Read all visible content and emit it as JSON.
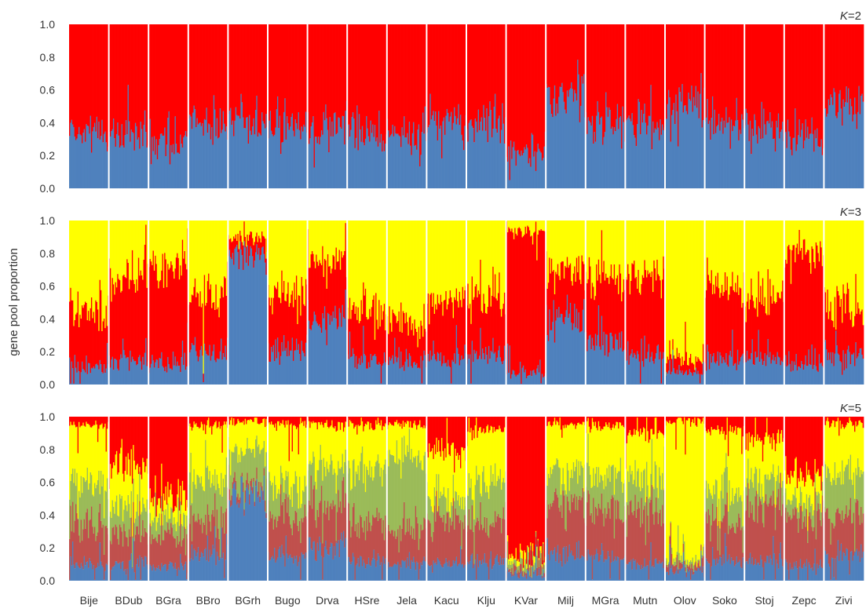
{
  "ylabel": "gene pool proportion",
  "colors": {
    "blue": "#4f81bd",
    "red": "#ff0000",
    "yellow": "#ffff00",
    "olive": "#9bbb59",
    "brown": "#c0504d",
    "separator": "#ffffff"
  },
  "chart_data": {
    "type": "bar",
    "stacked": true,
    "ylim": [
      0,
      1
    ],
    "yticks": [
      "0.0",
      "0.2",
      "0.4",
      "0.6",
      "0.8",
      "1.0"
    ],
    "populations": [
      "Bije",
      "BDub",
      "BGra",
      "BBro",
      "BGrh",
      "Bugo",
      "Drva",
      "HSre",
      "Jela",
      "Kacu",
      "Klju",
      "KVar",
      "Milj",
      "MGra",
      "Mutn",
      "Olov",
      "Soko",
      "Stoj",
      "Zepc",
      "Zivi"
    ],
    "panels": [
      {
        "k_label": "K=2",
        "k_italic": "K",
        "k_value": "=2",
        "component_colors": [
          "blue",
          "red"
        ],
        "population_means": [
          [
            0.33,
            0.67
          ],
          [
            0.31,
            0.69
          ],
          [
            0.27,
            0.73
          ],
          [
            0.38,
            0.62
          ],
          [
            0.4,
            0.6
          ],
          [
            0.39,
            0.61
          ],
          [
            0.37,
            0.63
          ],
          [
            0.33,
            0.67
          ],
          [
            0.31,
            0.69
          ],
          [
            0.4,
            0.6
          ],
          [
            0.4,
            0.6
          ],
          [
            0.21,
            0.79
          ],
          [
            0.57,
            0.43
          ],
          [
            0.39,
            0.61
          ],
          [
            0.36,
            0.64
          ],
          [
            0.5,
            0.5
          ],
          [
            0.4,
            0.6
          ],
          [
            0.36,
            0.64
          ],
          [
            0.3,
            0.7
          ],
          [
            0.5,
            0.5
          ]
        ]
      },
      {
        "k_label": "K=3",
        "k_italic": "K",
        "k_value": "=3",
        "component_colors": [
          "blue",
          "red",
          "yellow"
        ],
        "population_means": [
          [
            0.1,
            0.35,
            0.55
          ],
          [
            0.15,
            0.5,
            0.35
          ],
          [
            0.12,
            0.6,
            0.28
          ],
          [
            0.2,
            0.35,
            0.45
          ],
          [
            0.8,
            0.1,
            0.1
          ],
          [
            0.2,
            0.35,
            0.45
          ],
          [
            0.4,
            0.35,
            0.25
          ],
          [
            0.15,
            0.3,
            0.55
          ],
          [
            0.15,
            0.22,
            0.63
          ],
          [
            0.15,
            0.35,
            0.5
          ],
          [
            0.18,
            0.35,
            0.47
          ],
          [
            0.07,
            0.87,
            0.06
          ],
          [
            0.4,
            0.3,
            0.3
          ],
          [
            0.25,
            0.4,
            0.35
          ],
          [
            0.18,
            0.5,
            0.32
          ],
          [
            0.08,
            0.08,
            0.84
          ],
          [
            0.15,
            0.45,
            0.4
          ],
          [
            0.15,
            0.35,
            0.5
          ],
          [
            0.12,
            0.7,
            0.18
          ],
          [
            0.18,
            0.3,
            0.52
          ]
        ]
      },
      {
        "k_label": "K=5",
        "k_italic": "K",
        "k_value": "=5",
        "component_colors": [
          "blue",
          "brown",
          "olive",
          "yellow",
          "red"
        ],
        "population_means": [
          [
            0.1,
            0.25,
            0.25,
            0.35,
            0.05
          ],
          [
            0.1,
            0.2,
            0.15,
            0.25,
            0.3
          ],
          [
            0.08,
            0.2,
            0.1,
            0.12,
            0.5
          ],
          [
            0.15,
            0.2,
            0.25,
            0.35,
            0.05
          ],
          [
            0.55,
            0.05,
            0.2,
            0.17,
            0.03
          ],
          [
            0.15,
            0.25,
            0.2,
            0.35,
            0.05
          ],
          [
            0.2,
            0.25,
            0.25,
            0.25,
            0.05
          ],
          [
            0.12,
            0.25,
            0.3,
            0.28,
            0.05
          ],
          [
            0.1,
            0.2,
            0.45,
            0.2,
            0.05
          ],
          [
            0.1,
            0.25,
            0.15,
            0.3,
            0.2
          ],
          [
            0.12,
            0.25,
            0.25,
            0.3,
            0.08
          ],
          [
            0.04,
            0.03,
            0.05,
            0.03,
            0.85
          ],
          [
            0.15,
            0.3,
            0.2,
            0.3,
            0.05
          ],
          [
            0.15,
            0.3,
            0.2,
            0.3,
            0.05
          ],
          [
            0.1,
            0.3,
            0.2,
            0.3,
            0.1
          ],
          [
            0.05,
            0.04,
            0.03,
            0.85,
            0.03
          ],
          [
            0.12,
            0.25,
            0.2,
            0.35,
            0.08
          ],
          [
            0.12,
            0.35,
            0.15,
            0.25,
            0.13
          ],
          [
            0.1,
            0.3,
            0.1,
            0.15,
            0.35
          ],
          [
            0.15,
            0.25,
            0.25,
            0.3,
            0.05
          ]
        ]
      }
    ]
  }
}
